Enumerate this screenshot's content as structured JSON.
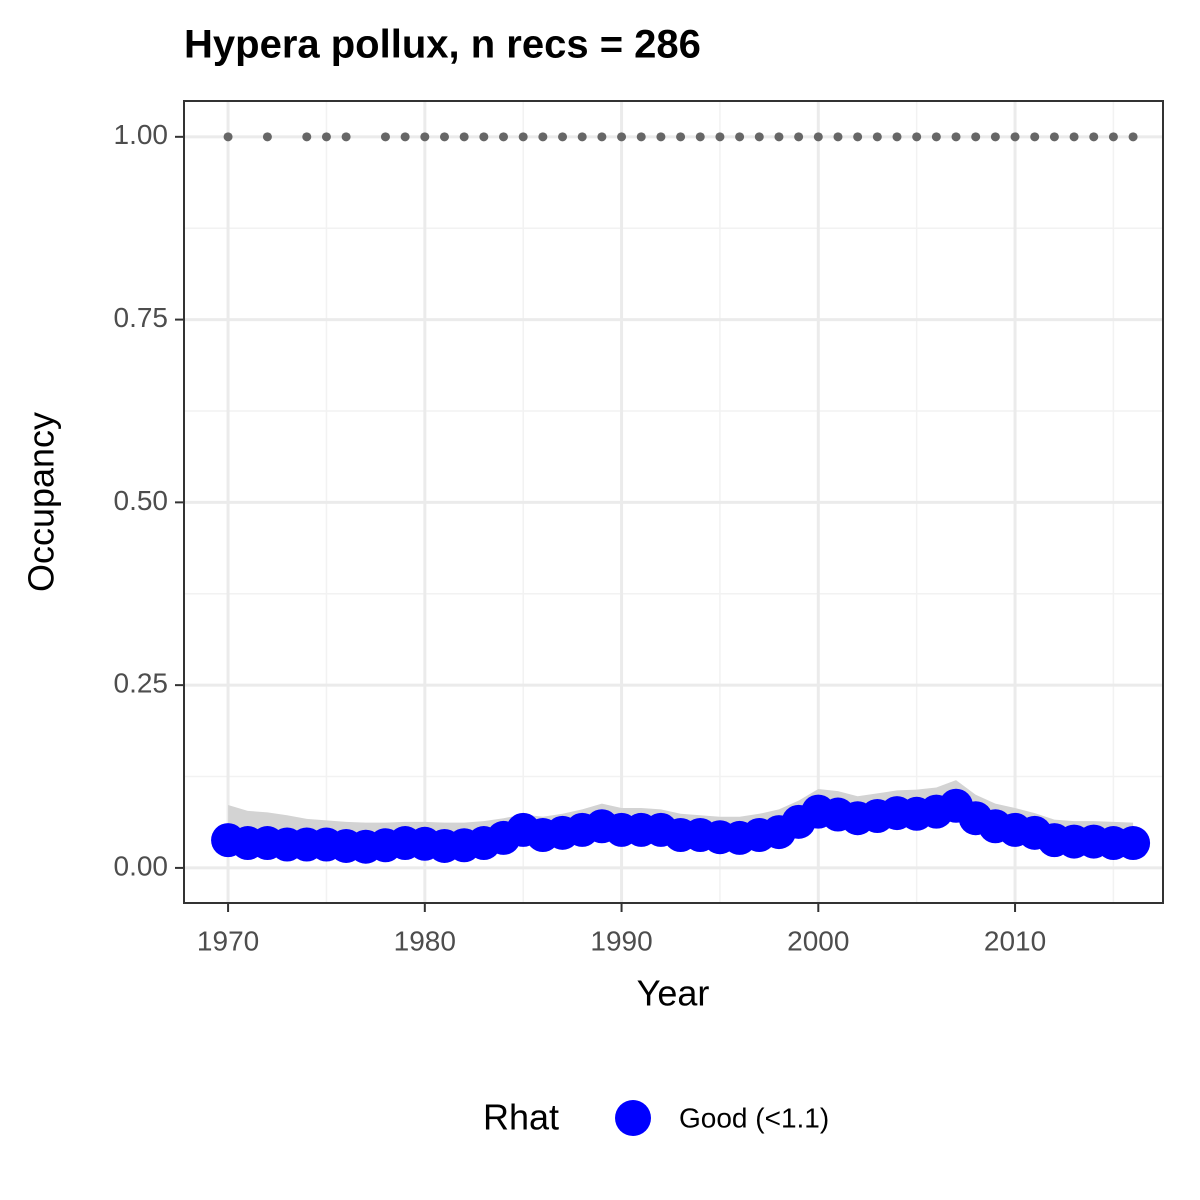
{
  "chart_data": {
    "type": "line",
    "title": "Hypera pollux, n recs = 286",
    "x_label": "Year",
    "y_label": "Occupancy",
    "legend_title": "Rhat",
    "legend_position": "bottom",
    "grid": true,
    "xlim": [
      1967.76,
      2017.52
    ],
    "ylim": [
      -0.048,
      1.049
    ],
    "xticks": [
      1970,
      1980,
      1990,
      2000,
      2010
    ],
    "yticks": [
      {
        "value": 0,
        "label": "0.00"
      },
      {
        "value": 0.25,
        "label": "0.25"
      },
      {
        "value": 0.5,
        "label": "0.50"
      },
      {
        "value": 0.75,
        "label": "0.75"
      },
      {
        "value": 1,
        "label": "1.00"
      }
    ],
    "minor_xticks": [
      1975,
      1985,
      1995,
      2005,
      2015
    ],
    "minor_yticks": [
      0.125,
      0.375,
      0.625,
      0.875
    ],
    "x": [
      1970,
      1971,
      1972,
      1973,
      1974,
      1975,
      1976,
      1977,
      1978,
      1979,
      1980,
      1981,
      1982,
      1983,
      1984,
      1985,
      1986,
      1987,
      1988,
      1989,
      1990,
      1991,
      1992,
      1993,
      1994,
      1995,
      1996,
      1997,
      1998,
      1999,
      2000,
      2001,
      2002,
      2003,
      2004,
      2005,
      2006,
      2007,
      2008,
      2009,
      2010,
      2011,
      2012,
      2013,
      2014,
      2015,
      2016
    ],
    "series": [
      {
        "name": "Good (<1.1)",
        "color": "#0000ff",
        "ribbon_color": "#d3d3d3",
        "values": [
          0.038,
          0.034,
          0.034,
          0.032,
          0.032,
          0.032,
          0.03,
          0.029,
          0.031,
          0.034,
          0.033,
          0.03,
          0.031,
          0.034,
          0.041,
          0.052,
          0.045,
          0.048,
          0.052,
          0.057,
          0.052,
          0.052,
          0.052,
          0.045,
          0.045,
          0.042,
          0.041,
          0.045,
          0.049,
          0.063,
          0.077,
          0.073,
          0.068,
          0.071,
          0.075,
          0.074,
          0.077,
          0.085,
          0.068,
          0.057,
          0.052,
          0.048,
          0.038,
          0.036,
          0.036,
          0.034,
          0.034
        ],
        "upper": [
          0.086,
          0.078,
          0.076,
          0.072,
          0.067,
          0.065,
          0.063,
          0.062,
          0.062,
          0.063,
          0.063,
          0.062,
          0.062,
          0.064,
          0.068,
          0.073,
          0.07,
          0.074,
          0.08,
          0.088,
          0.082,
          0.082,
          0.08,
          0.074,
          0.072,
          0.07,
          0.07,
          0.074,
          0.08,
          0.092,
          0.108,
          0.105,
          0.098,
          0.102,
          0.106,
          0.107,
          0.11,
          0.12,
          0.1,
          0.088,
          0.082,
          0.075,
          0.066,
          0.064,
          0.064,
          0.063,
          0.062
        ],
        "lower": [
          0.028,
          0.024,
          0.024,
          0.022,
          0.022,
          0.022,
          0.02,
          0.019,
          0.021,
          0.024,
          0.023,
          0.02,
          0.021,
          0.024,
          0.03,
          0.04,
          0.034,
          0.037,
          0.04,
          0.044,
          0.04,
          0.04,
          0.04,
          0.034,
          0.034,
          0.031,
          0.03,
          0.034,
          0.037,
          0.049,
          0.062,
          0.058,
          0.054,
          0.056,
          0.06,
          0.059,
          0.062,
          0.068,
          0.054,
          0.045,
          0.041,
          0.037,
          0.028,
          0.026,
          0.026,
          0.024,
          0.024
        ]
      }
    ],
    "records": {
      "color": "#666666",
      "x": [
        1970,
        1972,
        1974,
        1975,
        1976,
        1978,
        1979,
        1980,
        1981,
        1982,
        1983,
        1984,
        1985,
        1986,
        1987,
        1988,
        1989,
        1990,
        1991,
        1992,
        1993,
        1994,
        1995,
        1996,
        1997,
        1998,
        1999,
        2000,
        2001,
        2002,
        2003,
        2004,
        2005,
        2006,
        2007,
        2008,
        2009,
        2010,
        2011,
        2012,
        2013,
        2014,
        2015,
        2016
      ],
      "values": [
        1,
        1,
        1,
        1,
        1,
        1,
        1,
        1,
        1,
        1,
        1,
        1,
        1,
        1,
        1,
        1,
        1,
        1,
        1,
        1,
        1,
        1,
        1,
        1,
        1,
        1,
        1,
        1,
        1,
        1,
        1,
        1,
        1,
        1,
        1,
        1,
        1,
        1,
        1,
        1,
        1,
        1,
        1,
        1
      ]
    }
  }
}
